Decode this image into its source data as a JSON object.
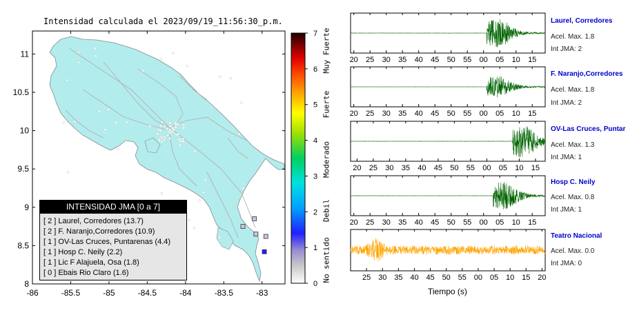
{
  "map": {
    "title": "Intensidad calculada el 2023/09/19_11:56:30_p.m.",
    "lon_ticks": [
      "-86",
      "-85.5",
      "-85",
      "-84.5",
      "-84",
      "-83.5",
      "-83"
    ],
    "lat_ticks": [
      "8",
      "8.5",
      "9",
      "9.5",
      "10",
      "10.5",
      "11"
    ],
    "xlim": [
      -86,
      -82.7
    ],
    "ylim": [
      8,
      11.3
    ],
    "land_color": "#b3eced",
    "station_markers": [
      {
        "lon": -83.1,
        "lat": 8.85
      },
      {
        "lon": -83.25,
        "lat": 8.75
      },
      {
        "lon": -82.95,
        "lat": 8.62
      },
      {
        "lon": -83.08,
        "lat": 8.65
      },
      {
        "lon": -82.97,
        "lat": 8.42
      }
    ]
  },
  "legend": {
    "title": "INTENSIDAD JMA [0 a 7]",
    "rows": [
      "[ 2 ]  Laurel, Corredores (13.7)",
      "[ 2 ]  F. Naranjo,Corredores (10.9)",
      "[ 1 ]  OV-Las Cruces, Puntarenas (4.4)",
      "[ 1 ]  Hosp C. Neily (2.2)",
      "[ 1 ]  Lic F Alajuela, Osa (1.8)",
      "[ 0 ]  Ebais Rio Claro (1.6)"
    ]
  },
  "colorbar": {
    "ticks": [
      "0",
      "1",
      "2",
      "3",
      "4",
      "5",
      "6",
      "7"
    ],
    "range": [
      0,
      7
    ],
    "labels": [
      "No sentido",
      "Debil",
      "Moderado",
      "Fuerte",
      "Muy Fuerte"
    ]
  },
  "chart_data": {
    "type": "line",
    "xlabel": "Tiempo (s)",
    "traces": [
      {
        "name": "Laurel, Corredores",
        "accel": "Acel. Max. 1.8",
        "jma": "Int JMA: 2",
        "color": "#006400",
        "ticks": [
          "20",
          "25",
          "30",
          "35",
          "40",
          "45",
          "50",
          "55",
          "00",
          "05",
          "10",
          "15"
        ],
        "tick_start": 20,
        "time_range": [
          19,
          79
        ],
        "onset": 61
      },
      {
        "name": "F. Naranjo,Corredores",
        "accel": "Acel. Max. 1.8",
        "jma": "Int JMA: 2",
        "color": "#006400",
        "ticks": [
          "20",
          "25",
          "30",
          "35",
          "40",
          "45",
          "50",
          "55",
          "00",
          "05",
          "10",
          "15"
        ],
        "tick_start": 20,
        "time_range": [
          19,
          79
        ],
        "onset": 61
      },
      {
        "name": "OV-Las Cruces, Puntar",
        "accel": "Acel. Max. 1.3",
        "jma": "Int JMA: 1",
        "color": "#006400",
        "ticks": [
          "20",
          "25",
          "30",
          "35",
          "40",
          "45",
          "50",
          "55",
          "00",
          "05",
          "10",
          "15"
        ],
        "tick_start": 20,
        "time_range": [
          18,
          78
        ],
        "onset": 68
      },
      {
        "name": "Hosp C. Neily",
        "accel": "Acel. Max. 0.8",
        "jma": "Int JMA: 1",
        "color": "#006400",
        "ticks": [
          "20",
          "25",
          "30",
          "35",
          "40",
          "45",
          "50",
          "55",
          "00",
          "05",
          "10",
          "15"
        ],
        "tick_start": 20,
        "time_range": [
          19,
          79
        ],
        "onset": 63
      },
      {
        "name": "Teatro Nacional",
        "accel": "Acel. Max. 0.0",
        "jma": "Int JMA: 0",
        "color": "#ffa500",
        "ticks": [
          "25",
          "30",
          "35",
          "40",
          "45",
          "50",
          "55",
          "00",
          "05",
          "10",
          "15",
          "20"
        ],
        "tick_start": 25,
        "time_range": [
          20,
          81
        ],
        "onset": 25
      }
    ]
  }
}
